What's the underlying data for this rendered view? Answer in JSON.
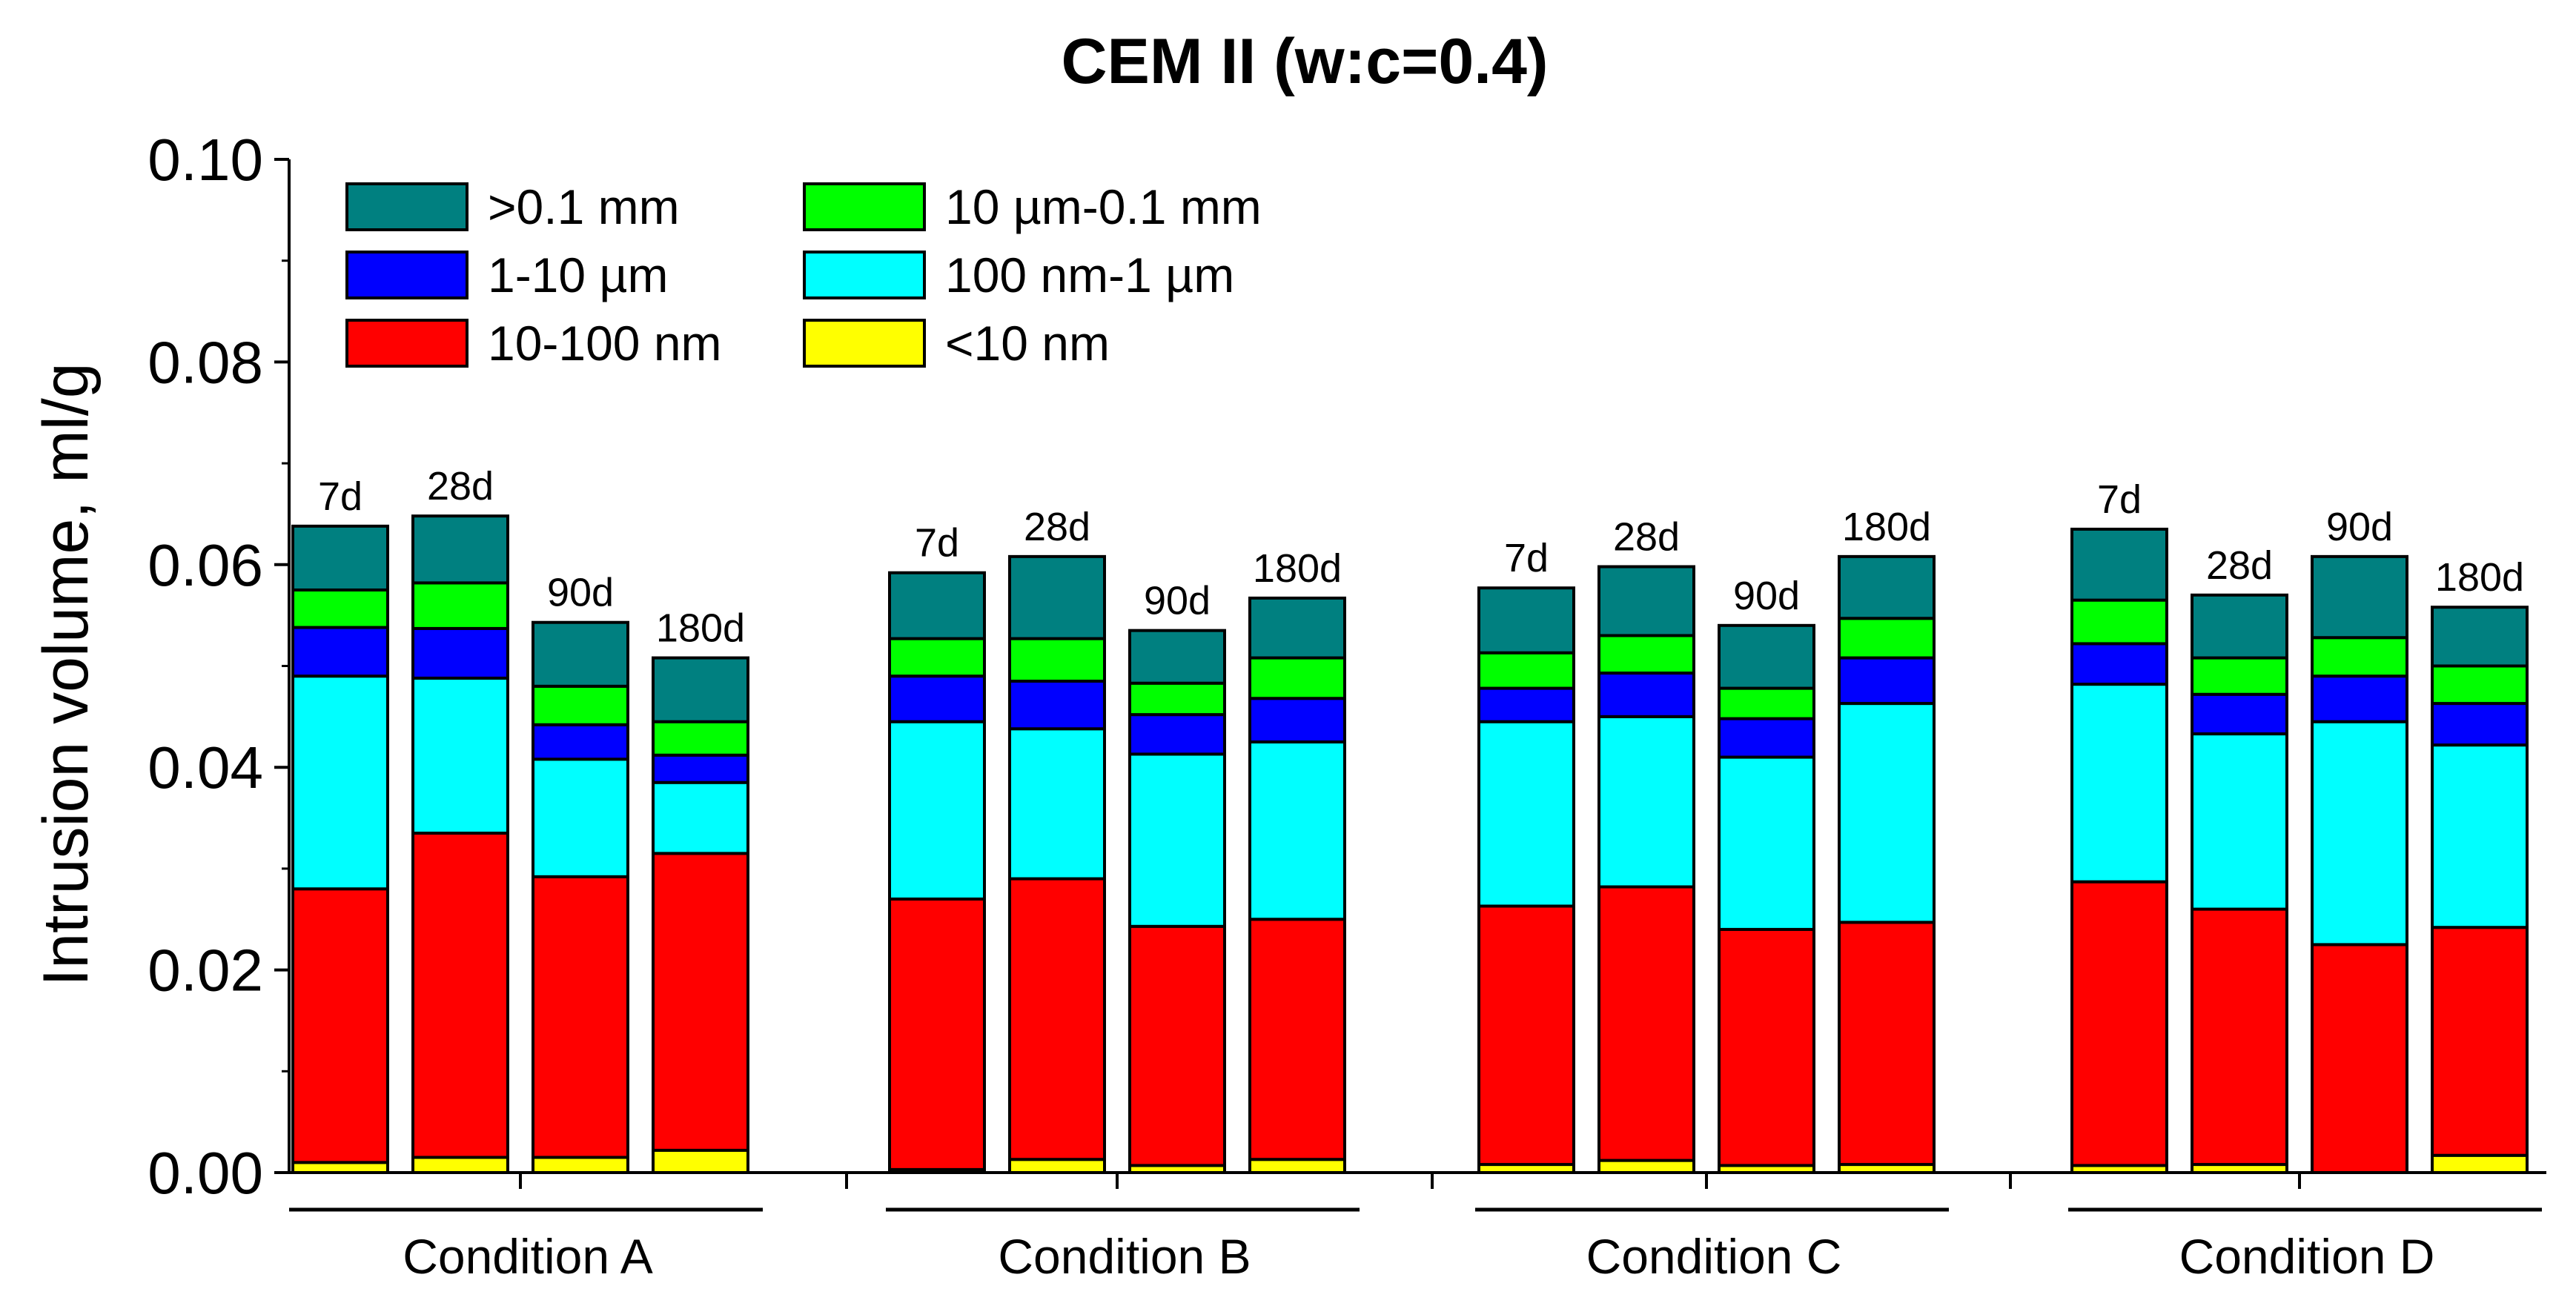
{
  "chart_data": {
    "type": "bar",
    "stacked": true,
    "title": "CEM II (w:c=0.4)",
    "xlabel": "",
    "ylabel": "Intrusion volume, ml/g",
    "ylim": [
      0,
      0.1
    ],
    "yticks": [
      "0.00",
      "0.02",
      "0.04",
      "0.06",
      "0.08",
      "0.10"
    ],
    "ytick_values": [
      0,
      0.02,
      0.04,
      0.06,
      0.08,
      0.1
    ],
    "legend_position": "top-left",
    "series": [
      {
        "name": "<10 nm",
        "color": "#ffff00",
        "key": "lt10nm"
      },
      {
        "name": "10-100 nm",
        "color": "#ff0000",
        "key": "nm10_100"
      },
      {
        "name": "100 nm-1 µm",
        "color": "#00ffff",
        "key": "nm100_1um"
      },
      {
        "name": "1-10 µm",
        "color": "#0000ff",
        "key": "um1_10"
      },
      {
        "name": "10 µm-0.1 mm",
        "color": "#00ff00",
        "key": "um10_01mm"
      },
      {
        "name": ">0.1 mm",
        "color": "#008080",
        "key": "gt01mm"
      }
    ],
    "legend_order": [
      ">0.1 mm",
      "10 µm-0.1 mm",
      "1-10 µm",
      "100 nm-1 µm",
      "10-100 nm",
      "<10 nm"
    ],
    "groups": [
      {
        "name": "Condition A",
        "bars": [
          {
            "label": "7d",
            "cumulative": [
              0.001,
              0.028,
              0.049,
              0.0538,
              0.0575,
              0.0638
            ]
          },
          {
            "label": "28d",
            "cumulative": [
              0.0015,
              0.0335,
              0.0488,
              0.0537,
              0.0582,
              0.0648
            ]
          },
          {
            "label": "90d",
            "cumulative": [
              0.0015,
              0.0292,
              0.0408,
              0.0442,
              0.048,
              0.0543
            ]
          },
          {
            "label": "180d",
            "cumulative": [
              0.0022,
              0.0315,
              0.0385,
              0.0412,
              0.0445,
              0.0508
            ]
          }
        ]
      },
      {
        "name": "Condition B",
        "bars": [
          {
            "label": "7d",
            "cumulative": [
              0.0003,
              0.027,
              0.0445,
              0.049,
              0.0527,
              0.0592
            ]
          },
          {
            "label": "28d",
            "cumulative": [
              0.0013,
              0.029,
              0.0438,
              0.0485,
              0.0527,
              0.0608
            ]
          },
          {
            "label": "90d",
            "cumulative": [
              0.0007,
              0.0243,
              0.0413,
              0.0452,
              0.0483,
              0.0535
            ]
          },
          {
            "label": "180d",
            "cumulative": [
              0.0013,
              0.025,
              0.0425,
              0.0468,
              0.0508,
              0.0567
            ]
          }
        ]
      },
      {
        "name": "Condition C",
        "bars": [
          {
            "label": "7d",
            "cumulative": [
              0.0008,
              0.0263,
              0.0445,
              0.0478,
              0.0513,
              0.0577
            ]
          },
          {
            "label": "28d",
            "cumulative": [
              0.0012,
              0.0282,
              0.045,
              0.0493,
              0.053,
              0.0598
            ]
          },
          {
            "label": "90d",
            "cumulative": [
              0.0007,
              0.024,
              0.041,
              0.0448,
              0.0478,
              0.054
            ]
          },
          {
            "label": "180d",
            "cumulative": [
              0.0008,
              0.0247,
              0.0463,
              0.0508,
              0.0547,
              0.0608
            ]
          }
        ]
      },
      {
        "name": "Condition D",
        "bars": [
          {
            "label": "7d",
            "cumulative": [
              0.0007,
              0.0287,
              0.0482,
              0.0522,
              0.0565,
              0.0635
            ]
          },
          {
            "label": "28d",
            "cumulative": [
              0.0008,
              0.026,
              0.0433,
              0.0472,
              0.0508,
              0.057
            ]
          },
          {
            "label": "90d",
            "cumulative": [
              0.0,
              0.0225,
              0.0445,
              0.049,
              0.0528,
              0.0608
            ]
          },
          {
            "label": "180d",
            "cumulative": [
              0.0017,
              0.0242,
              0.0422,
              0.0463,
              0.05,
              0.0558
            ]
          }
        ]
      }
    ]
  }
}
